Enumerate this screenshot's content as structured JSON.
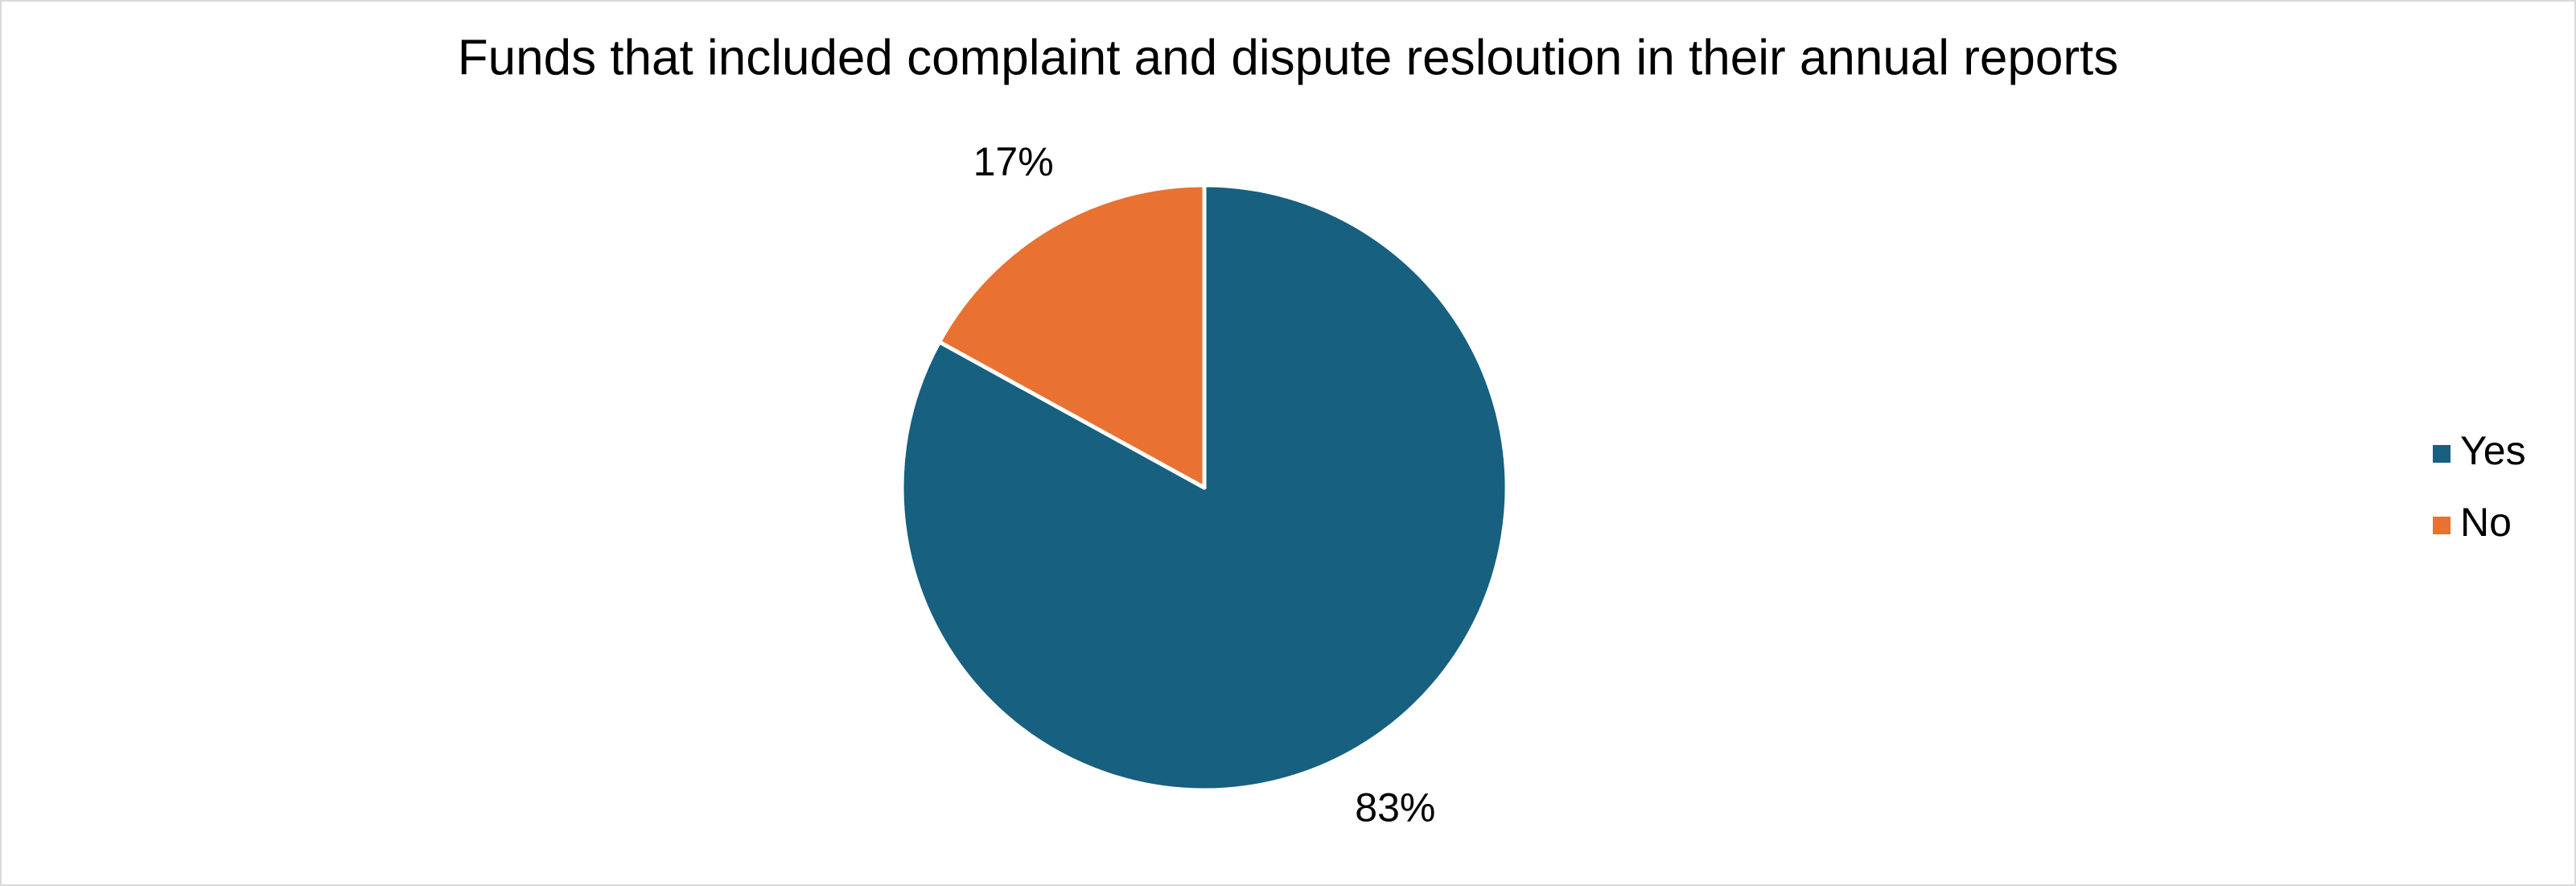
{
  "chart_data": {
    "type": "pie",
    "title": "Funds that included complaint and dispute resloution in their annual reports",
    "categories": [
      "Yes",
      "No"
    ],
    "values": [
      83,
      17
    ],
    "value_labels": [
      "83%",
      "17%"
    ],
    "colors": [
      "#17607f",
      "#e97132"
    ],
    "legend": "right"
  }
}
